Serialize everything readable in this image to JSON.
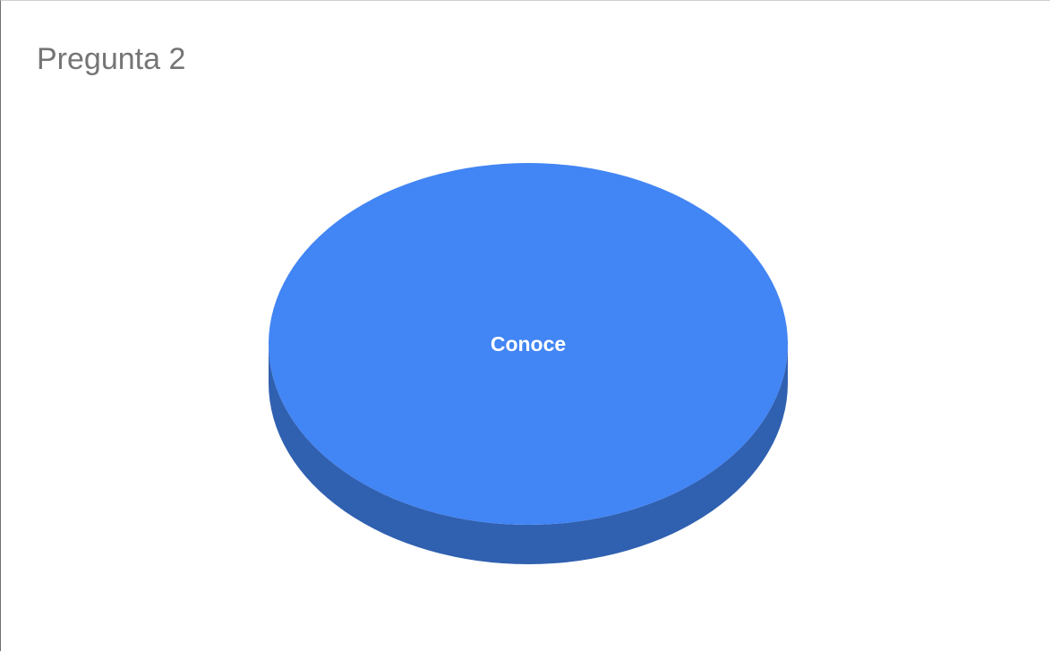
{
  "chart_data": {
    "type": "pie",
    "title": "Pregunta 2",
    "categories": [
      "Conoce"
    ],
    "values": [
      100
    ],
    "colors": [
      "#4285f4"
    ],
    "legend": "none",
    "style": "3d"
  }
}
